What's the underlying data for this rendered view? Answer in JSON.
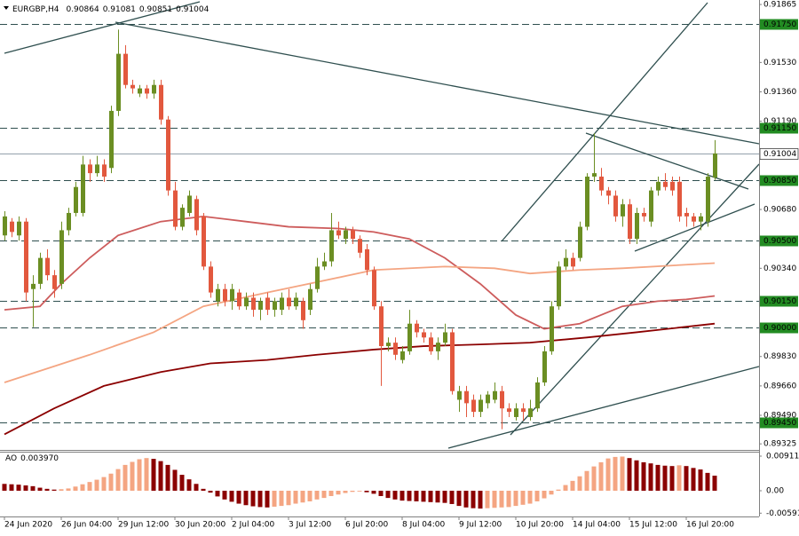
{
  "chart_data": {
    "type": "candlestick",
    "header": {
      "symbol": "EURGBP,H4",
      "ohlc": [
        0.90864,
        0.91081,
        0.90851,
        0.91004
      ]
    },
    "up_color": "#6b8e23",
    "down_color": "#e2583e",
    "xlim": [
      -0.625,
      106.25
    ],
    "xticks": [
      {
        "value": 0,
        "label": "24 Jun 2020"
      },
      {
        "value": 8,
        "label": "26 Jun 04:00"
      },
      {
        "value": 16,
        "label": "29 Jun 12:00"
      },
      {
        "value": 24,
        "label": "30 Jun 20:00"
      },
      {
        "value": 32,
        "label": "2 Jul 04:00"
      },
      {
        "value": 40,
        "label": "3 Jul 12:00"
      },
      {
        "value": 48,
        "label": "6 Jul 20:00"
      },
      {
        "value": 56,
        "label": "8 Jul 04:00"
      },
      {
        "value": 64,
        "label": "9 Jul 12:00"
      },
      {
        "value": 72,
        "label": "10 Jul 20:00"
      },
      {
        "value": 80,
        "label": "14 Jul 04:00"
      },
      {
        "value": 88,
        "label": "15 Jul 12:00"
      },
      {
        "value": 96,
        "label": "16 Jul 20:00"
      }
    ],
    "ylim": [
      0.8929,
      0.91891
    ],
    "yticks": [
      0.91865,
      {
        "value": 0.9153,
        "label": "0.91530"
      },
      {
        "value": 0.9136,
        "label": "0.91360"
      },
      {
        "value": 0.9119,
        "label": "0.91190"
      },
      {
        "value": 0.9068,
        "label": "0.90680"
      },
      {
        "value": 0.9034,
        "label": "0.90340"
      },
      {
        "value": 0.8983,
        "label": "0.89830"
      },
      {
        "value": 0.8966,
        "label": "0.89660"
      },
      {
        "value": 0.8949,
        "label": "0.89490"
      },
      0.89325
    ],
    "levels": [
      {
        "value": 0.9175,
        "label": "0.91750"
      },
      {
        "value": 0.9115,
        "label": "0.91150"
      },
      {
        "value": 0.9085,
        "label": "0.90850"
      },
      {
        "value": 0.905,
        "label": "0.90500"
      },
      {
        "value": 0.9015,
        "label": "0.90150"
      },
      {
        "value": 0.9,
        "label": "0.90000"
      },
      {
        "value": 0.8945,
        "label": "0.89450"
      }
    ],
    "level_color": "#228b22",
    "current": 0.91004,
    "candles": [
      [
        0.9053,
        0.9067,
        0.905,
        0.9064
      ],
      [
        0.9061,
        0.9063,
        0.9052,
        0.9055
      ],
      [
        0.9053,
        0.9064,
        0.905,
        0.9061
      ],
      [
        0.9061,
        0.9063,
        0.9015,
        0.902
      ],
      [
        0.9022,
        0.903,
        0.9,
        0.9025
      ],
      [
        0.9025,
        0.9043,
        0.9022,
        0.904
      ],
      [
        0.904,
        0.9045,
        0.9027,
        0.903
      ],
      [
        0.903,
        0.9033,
        0.9017,
        0.9022
      ],
      [
        0.9025,
        0.9061,
        0.9022,
        0.9056
      ],
      [
        0.9056,
        0.9069,
        0.9053,
        0.9066
      ],
      [
        0.9066,
        0.9084,
        0.9064,
        0.9081
      ],
      [
        0.9066,
        0.9099,
        0.9064,
        0.9094
      ],
      [
        0.9094,
        0.9097,
        0.9084,
        0.9089
      ],
      [
        0.9089,
        0.9099,
        0.9087,
        0.9094
      ],
      [
        0.9094,
        0.9097,
        0.9084,
        0.9087
      ],
      [
        0.9092,
        0.9128,
        0.9089,
        0.9125
      ],
      [
        0.9125,
        0.9172,
        0.9122,
        0.9158
      ],
      [
        0.9158,
        0.9163,
        0.9138,
        0.914
      ],
      [
        0.914,
        0.9143,
        0.9135,
        0.9138
      ],
      [
        0.9135,
        0.914,
        0.9133,
        0.9138
      ],
      [
        0.9138,
        0.914,
        0.9132,
        0.9135
      ],
      [
        0.9135,
        0.9143,
        0.9132,
        0.914
      ],
      [
        0.914,
        0.9143,
        0.9117,
        0.912
      ],
      [
        0.912,
        0.9122,
        0.9076,
        0.9079
      ],
      [
        0.9079,
        0.9084,
        0.9056,
        0.9058
      ],
      [
        0.9058,
        0.9071,
        0.9056,
        0.9069
      ],
      [
        0.9066,
        0.9079,
        0.9064,
        0.9076
      ],
      [
        0.9074,
        0.9076,
        0.9053,
        0.9056
      ],
      [
        0.9064,
        0.9066,
        0.9033,
        0.9035
      ],
      [
        0.9035,
        0.9038,
        0.9017,
        0.902
      ],
      [
        0.9015,
        0.9025,
        0.9012,
        0.9022
      ],
      [
        0.9022,
        0.9025,
        0.9012,
        0.9015
      ],
      [
        0.9015,
        0.9025,
        0.901,
        0.9022
      ],
      [
        0.902,
        0.9022,
        0.901,
        0.9012
      ],
      [
        0.9012,
        0.902,
        0.901,
        0.9017
      ],
      [
        0.9017,
        0.902,
        0.9006,
        0.901
      ],
      [
        0.901,
        0.9017,
        0.9004,
        0.9015
      ],
      [
        0.9017,
        0.902,
        0.9007,
        0.901
      ],
      [
        0.901,
        0.9017,
        0.9006,
        0.9015
      ],
      [
        0.901,
        0.902,
        0.9007,
        0.9017
      ],
      [
        0.9017,
        0.9022,
        0.901,
        0.9012
      ],
      [
        0.9012,
        0.902,
        0.901,
        0.9017
      ],
      [
        0.9015,
        0.9017,
        0.8999,
        0.9004
      ],
      [
        0.901,
        0.9025,
        0.9007,
        0.9022
      ],
      [
        0.9022,
        0.904,
        0.902,
        0.9035
      ],
      [
        0.9035,
        0.9043,
        0.9033,
        0.9038
      ],
      [
        0.9038,
        0.9066,
        0.9035,
        0.9056
      ],
      [
        0.9056,
        0.9061,
        0.9051,
        0.9053
      ],
      [
        0.9051,
        0.9058,
        0.9048,
        0.9056
      ],
      [
        0.9056,
        0.9058,
        0.9048,
        0.9051
      ],
      [
        0.9051,
        0.9053,
        0.904,
        0.9043
      ],
      [
        0.9045,
        0.9048,
        0.903,
        0.9033
      ],
      [
        0.9033,
        0.9035,
        0.901,
        0.9012
      ],
      [
        0.9012,
        0.9015,
        0.8966,
        0.8989
      ],
      [
        0.8989,
        0.8994,
        0.8986,
        0.8991
      ],
      [
        0.8991,
        0.8994,
        0.8981,
        0.8984
      ],
      [
        0.8981,
        0.8989,
        0.8979,
        0.8986
      ],
      [
        0.8986,
        0.901,
        0.8984,
        0.9002
      ],
      [
        0.9002,
        0.9004,
        0.8994,
        0.8997
      ],
      [
        0.8997,
        0.8999,
        0.8991,
        0.8994
      ],
      [
        0.8994,
        0.8997,
        0.8984,
        0.8986
      ],
      [
        0.8986,
        0.8994,
        0.8981,
        0.8991
      ],
      [
        0.8991,
        0.9002,
        0.8989,
        0.8997
      ],
      [
        0.8997,
        0.8999,
        0.8961,
        0.8963
      ],
      [
        0.8958,
        0.8966,
        0.8951,
        0.8963
      ],
      [
        0.8963,
        0.8966,
        0.8948,
        0.8956
      ],
      [
        0.8958,
        0.8961,
        0.8948,
        0.8951
      ],
      [
        0.8951,
        0.8961,
        0.8948,
        0.8958
      ],
      [
        0.8956,
        0.8963,
        0.8953,
        0.8961
      ],
      [
        0.8958,
        0.8968,
        0.8956,
        0.8963
      ],
      [
        0.8963,
        0.8966,
        0.8941,
        0.8953
      ],
      [
        0.8953,
        0.8956,
        0.8948,
        0.8951
      ],
      [
        0.8948,
        0.8956,
        0.8946,
        0.8953
      ],
      [
        0.8953,
        0.8956,
        0.8946,
        0.8951
      ],
      [
        0.8948,
        0.8958,
        0.8946,
        0.8953
      ],
      [
        0.8953,
        0.8971,
        0.8951,
        0.8968
      ],
      [
        0.8968,
        0.8989,
        0.8966,
        0.8986
      ],
      [
        0.8986,
        0.9015,
        0.8984,
        0.9012
      ],
      [
        0.9012,
        0.9038,
        0.901,
        0.9035
      ],
      [
        0.9035,
        0.9045,
        0.9033,
        0.904
      ],
      [
        0.904,
        0.9043,
        0.9033,
        0.9035
      ],
      [
        0.904,
        0.9061,
        0.9038,
        0.9058
      ],
      [
        0.9058,
        0.9089,
        0.9056,
        0.9087
      ],
      [
        0.9087,
        0.9112,
        0.9084,
        0.9089
      ],
      [
        0.9087,
        0.9092,
        0.9076,
        0.9079
      ],
      [
        0.9079,
        0.9081,
        0.9071,
        0.9076
      ],
      [
        0.9076,
        0.9079,
        0.9061,
        0.9064
      ],
      [
        0.9064,
        0.9074,
        0.9058,
        0.9071
      ],
      [
        0.9071,
        0.9074,
        0.9048,
        0.9051
      ],
      [
        0.9051,
        0.9069,
        0.9048,
        0.9066
      ],
      [
        0.9066,
        0.9069,
        0.9061,
        0.9064
      ],
      [
        0.9061,
        0.9081,
        0.9058,
        0.9079
      ],
      [
        0.9079,
        0.9087,
        0.9076,
        0.9084
      ],
      [
        0.9084,
        0.9089,
        0.9079,
        0.9081
      ],
      [
        0.9084,
        0.9087,
        0.9076,
        0.9079
      ],
      [
        0.9084,
        0.9087,
        0.9061,
        0.9064
      ],
      [
        0.9066,
        0.9069,
        0.9058,
        0.9064
      ],
      [
        0.9064,
        0.9066,
        0.9058,
        0.9061
      ],
      [
        0.9061,
        0.9066,
        0.9056,
        0.9064
      ],
      [
        0.9061,
        0.9089,
        0.9058,
        0.9087
      ],
      [
        0.90864,
        0.91081,
        0.90851,
        0.91004
      ]
    ],
    "averages": [
      {
        "color": "#cd5c5c",
        "x": [
          0,
          5,
          8,
          12,
          16,
          22,
          28,
          34,
          40,
          47,
          52,
          57,
          62,
          67,
          72,
          76,
          81,
          87,
          92,
          96,
          100
        ],
        "values": [
          0.901,
          0.9012,
          0.9025,
          0.904,
          0.9053,
          0.9061,
          0.9064,
          0.9061,
          0.9058,
          0.9057,
          0.9055,
          0.9051,
          0.904,
          0.9025,
          0.9007,
          0.8999,
          0.9002,
          0.9012,
          0.9015,
          0.9016,
          0.9018
        ]
      },
      {
        "color": "#f4a582",
        "x": [
          0,
          12,
          21,
          28,
          37,
          44,
          52,
          62,
          69,
          74,
          81,
          87,
          100
        ],
        "values": [
          0.8968,
          0.8984,
          0.8997,
          0.9012,
          0.902,
          0.9026,
          0.9033,
          0.9035,
          0.9034,
          0.9031,
          0.9033,
          0.9034,
          0.9037
        ]
      },
      {
        "color": "#8b0000",
        "x": [
          0,
          7,
          14,
          22,
          29,
          37,
          44,
          52,
          59,
          67,
          74,
          82,
          89,
          100
        ],
        "values": [
          0.8938,
          0.8953,
          0.8966,
          0.8974,
          0.8979,
          0.8981,
          0.8984,
          0.8987,
          0.8989,
          0.899,
          0.8991,
          0.8994,
          0.8997,
          0.9002
        ]
      }
    ],
    "ao": {
      "name": "AO",
      "current": {
        "value": 0.00397,
        "label": "0.003970"
      },
      "up_color": "#f4a582",
      "down_color": "#8b0000",
      "ylim": [
        -0.00678,
        0.01028
      ],
      "yticks": [
        0.009112,
        {
          "value": 0,
          "label": "0.00"
        },
        -0.005912
      ],
      "values": [
        0.0018,
        0.0017,
        0.0016,
        0.0014,
        0.0012,
        0.0008,
        0.0005,
        0.0003,
        0.0004,
        0.0006,
        0.0011,
        0.0017,
        0.0023,
        0.0029,
        0.0036,
        0.0045,
        0.0057,
        0.0068,
        0.0076,
        0.0083,
        0.0086,
        0.0084,
        0.0078,
        0.0068,
        0.0055,
        0.0042,
        0.003,
        0.0018,
        0.0005,
        -0.0005,
        -0.0015,
        -0.0023,
        -0.0029,
        -0.0034,
        -0.0038,
        -0.0041,
        -0.0043,
        -0.0044,
        -0.0042,
        -0.004,
        -0.0038,
        -0.0034,
        -0.0031,
        -0.0028,
        -0.0023,
        -0.0019,
        -0.0014,
        -0.001,
        -0.0006,
        -0.0003,
        -0.0002,
        -0.0004,
        -0.0008,
        -0.0014,
        -0.0019,
        -0.0023,
        -0.0026,
        -0.0027,
        -0.0028,
        -0.0029,
        -0.003,
        -0.0031,
        -0.0032,
        -0.0035,
        -0.004,
        -0.0044,
        -0.0046,
        -0.0047,
        -0.0046,
        -0.0045,
        -0.0044,
        -0.0043,
        -0.004,
        -0.0037,
        -0.0034,
        -0.0028,
        -0.002,
        -0.001,
        0.0003,
        0.0015,
        0.0026,
        0.0038,
        0.0052,
        0.0064,
        0.0075,
        0.0085,
        0.0089,
        0.009,
        0.0086,
        0.008,
        0.0075,
        0.0072,
        0.0068,
        0.0066,
        0.0065,
        0.0067,
        0.0065,
        0.006,
        0.0056,
        0.0047,
        0.00397
      ]
    }
  }
}
